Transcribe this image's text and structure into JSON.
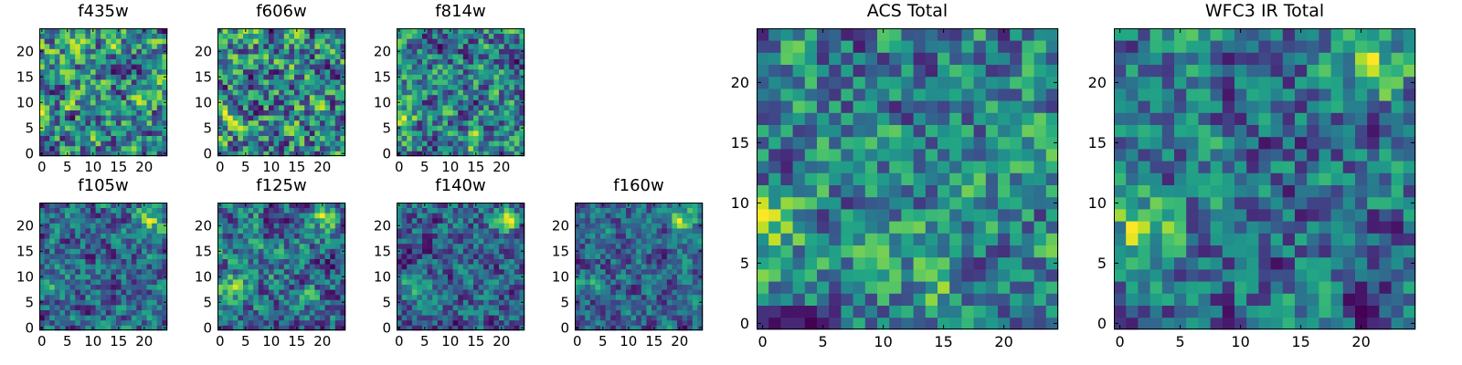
{
  "chart_data": [
    {
      "type": "heatmap",
      "title": "f435w",
      "grid_size": 25,
      "xticks": [
        0,
        5,
        10,
        15,
        20
      ],
      "yticks": [
        0,
        5,
        10,
        15,
        20
      ],
      "xlim": [
        -0.5,
        24.5
      ],
      "ylim": [
        -0.5,
        24.5
      ],
      "colormap": "viridis",
      "seed": 11,
      "blobs": []
    },
    {
      "type": "heatmap",
      "title": "f606w",
      "grid_size": 25,
      "xticks": [
        0,
        5,
        10,
        15,
        20
      ],
      "yticks": [
        0,
        5,
        10,
        15,
        20
      ],
      "xlim": [
        -0.5,
        24.5
      ],
      "ylim": [
        -0.5,
        24.5
      ],
      "colormap": "viridis",
      "seed": 23,
      "blobs": [
        {
          "x": 1,
          "y": 7,
          "strength": 0.25
        }
      ]
    },
    {
      "type": "heatmap",
      "title": "f814w",
      "grid_size": 25,
      "xticks": [
        0,
        5,
        10,
        15,
        20
      ],
      "yticks": [
        0,
        5,
        10,
        15,
        20
      ],
      "xlim": [
        -0.5,
        24.5
      ],
      "ylim": [
        -0.5,
        24.5
      ],
      "colormap": "viridis",
      "seed": 37,
      "blobs": [
        {
          "x": 1,
          "y": 7,
          "strength": 0.3
        },
        {
          "x": 15,
          "y": 2,
          "strength": 0.2
        }
      ]
    },
    {
      "type": "heatmap",
      "title": "f105w",
      "grid_size": 25,
      "xticks": [
        0,
        5,
        10,
        15,
        20
      ],
      "yticks": [
        0,
        5,
        10,
        15,
        20
      ],
      "xlim": [
        -0.5,
        24.5
      ],
      "ylim": [
        -0.5,
        24.5
      ],
      "colormap": "viridis",
      "seed": 41,
      "blobs": [
        {
          "x": 21,
          "y": 21,
          "strength": 0.45
        },
        {
          "x": 2,
          "y": 8,
          "strength": 0.3
        }
      ]
    },
    {
      "type": "heatmap",
      "title": "f125w",
      "grid_size": 25,
      "xticks": [
        0,
        5,
        10,
        15,
        20
      ],
      "yticks": [
        0,
        5,
        10,
        15,
        20
      ],
      "xlim": [
        -0.5,
        24.5
      ],
      "ylim": [
        -0.5,
        24.5
      ],
      "colormap": "viridis",
      "seed": 53,
      "blobs": [
        {
          "x": 21,
          "y": 21,
          "strength": 0.5
        },
        {
          "x": 2,
          "y": 8,
          "strength": 0.3
        }
      ]
    },
    {
      "type": "heatmap",
      "title": "f140w",
      "grid_size": 25,
      "xticks": [
        0,
        5,
        10,
        15,
        20
      ],
      "yticks": [
        0,
        5,
        10,
        15,
        20
      ],
      "xlim": [
        -0.5,
        24.5
      ],
      "ylim": [
        -0.5,
        24.5
      ],
      "colormap": "viridis",
      "seed": 67,
      "blobs": [
        {
          "x": 21,
          "y": 21,
          "strength": 0.55
        },
        {
          "x": 2,
          "y": 8,
          "strength": 0.3
        }
      ]
    },
    {
      "type": "heatmap",
      "title": "f160w",
      "grid_size": 25,
      "xticks": [
        0,
        5,
        10,
        15,
        20
      ],
      "yticks": [
        0,
        5,
        10,
        15,
        20
      ],
      "xlim": [
        -0.5,
        24.5
      ],
      "ylim": [
        -0.5,
        24.5
      ],
      "colormap": "viridis",
      "seed": 79,
      "blobs": [
        {
          "x": 21,
          "y": 21,
          "strength": 0.6
        },
        {
          "x": 2,
          "y": 8,
          "strength": 0.25
        }
      ]
    },
    {
      "type": "heatmap",
      "title": "ACS Total",
      "grid_size": 25,
      "xticks": [
        0,
        5,
        10,
        15,
        20
      ],
      "yticks": [
        0,
        5,
        10,
        15,
        20
      ],
      "xlim": [
        -0.5,
        24.5
      ],
      "ylim": [
        -0.5,
        24.5
      ],
      "colormap": "viridis",
      "seed": 97,
      "blobs": [
        {
          "x": 1,
          "y": 8,
          "strength": 0.35
        },
        {
          "x": 14,
          "y": 3,
          "strength": 0.2
        }
      ]
    },
    {
      "type": "heatmap",
      "title": "WFC3 IR Total",
      "grid_size": 25,
      "xticks": [
        0,
        5,
        10,
        15,
        20
      ],
      "yticks": [
        0,
        5,
        10,
        15,
        20
      ],
      "xlim": [
        -0.5,
        24.5
      ],
      "ylim": [
        -0.5,
        24.5
      ],
      "colormap": "viridis",
      "seed": 131,
      "blobs": [
        {
          "x": 21,
          "y": 21,
          "strength": 0.6
        },
        {
          "x": 2,
          "y": 8,
          "strength": 0.45
        }
      ]
    }
  ]
}
